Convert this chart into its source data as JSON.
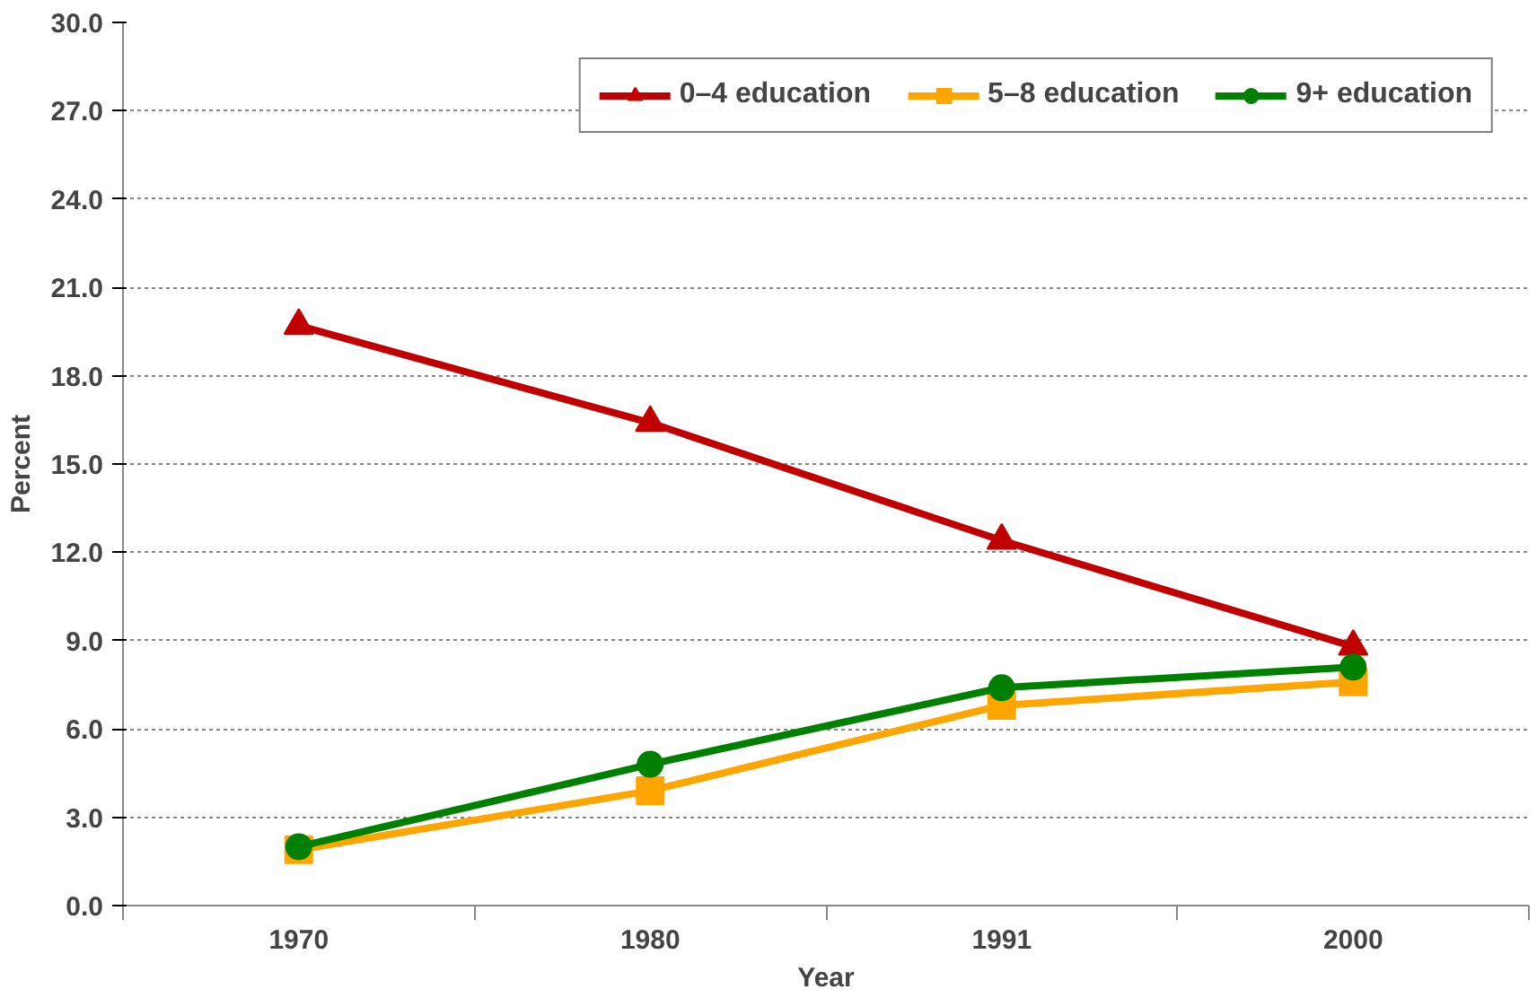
{
  "chart_data": {
    "type": "line",
    "xlabel": "Year",
    "ylabel": "Percent",
    "categories": [
      "1970",
      "1980",
      "1991",
      "2000"
    ],
    "series": [
      {
        "name": "0–4 education",
        "color": "#c00000",
        "marker": "triangle",
        "values": [
          19.7,
          16.4,
          12.4,
          8.8
        ]
      },
      {
        "name": "5–8 education",
        "color": "#ffa500",
        "marker": "square",
        "values": [
          1.9,
          3.9,
          6.8,
          7.6
        ]
      },
      {
        "name": "9+ education",
        "color": "#008000",
        "marker": "circle",
        "values": [
          2.0,
          4.8,
          7.4,
          8.1
        ]
      }
    ],
    "ylim": [
      0,
      30
    ],
    "yticks": [
      {
        "value": 0,
        "label": "0.0"
      },
      {
        "value": 3,
        "label": "3.0"
      },
      {
        "value": 6,
        "label": "6.0"
      },
      {
        "value": 9,
        "label": "9.0"
      },
      {
        "value": 12,
        "label": "12.0"
      },
      {
        "value": 15,
        "label": "15.0"
      },
      {
        "value": 18,
        "label": "18.0"
      },
      {
        "value": 21,
        "label": "21.0"
      },
      {
        "value": 24,
        "label": "24.0"
      },
      {
        "value": 27,
        "label": "27.0"
      },
      {
        "value": 30,
        "label": "30.0"
      }
    ],
    "grid": "y",
    "legend": "top right",
    "line_style": "solid"
  }
}
